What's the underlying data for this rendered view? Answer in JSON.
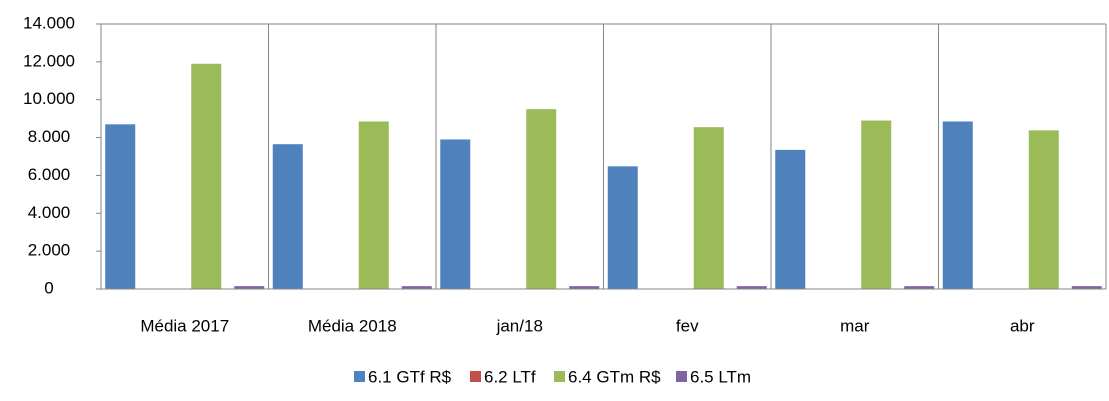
{
  "chart_data": {
    "type": "bar",
    "categories": [
      "Média 2017",
      "Média 2018",
      "jan/18",
      "fev",
      "mar",
      "abr"
    ],
    "series": [
      {
        "name": "6.1 GTf R$",
        "color": "#4f81bd",
        "values": [
          8700,
          7650,
          7900,
          6480,
          7350,
          8850
        ]
      },
      {
        "name": "6.2 LTf",
        "color": "#c0504d",
        "values": [
          0,
          0,
          0,
          0,
          0,
          0
        ]
      },
      {
        "name": "6.4 GTm R$",
        "color": "#9bbb59",
        "values": [
          11900,
          8850,
          9500,
          8550,
          8900,
          8380
        ]
      },
      {
        "name": "6.5 LTm",
        "color": "#8064a2",
        "values": [
          150,
          150,
          150,
          150,
          150,
          150
        ]
      }
    ],
    "ylim": [
      0,
      14000
    ],
    "yticks": [
      0,
      {
        "value": 2000,
        "label": "2.000"
      },
      {
        "value": 4000,
        "label": "4.000"
      },
      {
        "value": 6000,
        "label": "6.000"
      },
      {
        "value": 8000,
        "label": "8.000"
      },
      {
        "value": 10000,
        "label": "10.000"
      },
      {
        "value": 12000,
        "label": "12.000"
      },
      {
        "value": 14000,
        "label": "14.000"
      }
    ],
    "legend": "bottom"
  }
}
